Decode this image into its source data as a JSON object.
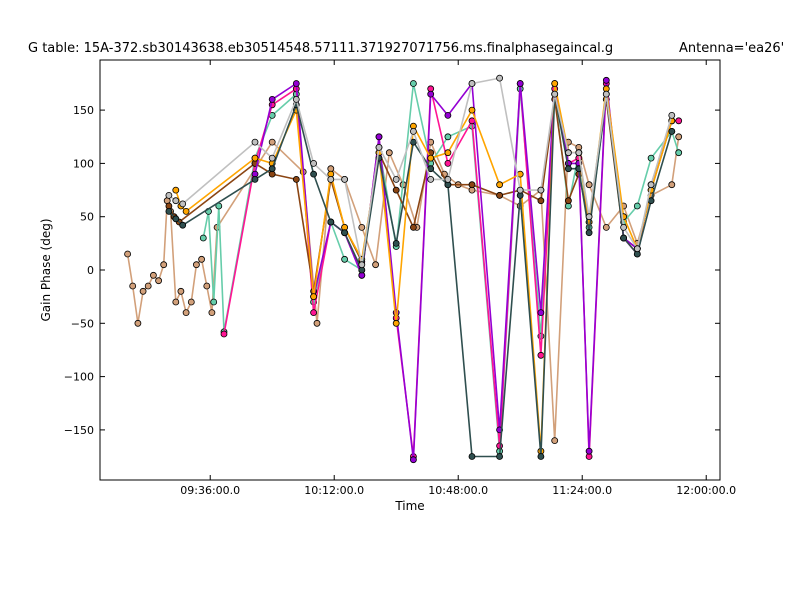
{
  "chart_data": {
    "type": "line",
    "title": "G table: 15A-372.sb30143638.eb30514548.57111.371927071756.ms.finalphasegaincal.g",
    "subtitle": "Antenna='ea26'",
    "xlabel": "Time",
    "ylabel": "Gain Phase (deg)",
    "xlim_minutes": [
      544,
      724
    ],
    "ylim": [
      -197,
      197
    ],
    "grid": false,
    "legend": "none",
    "x_ticks": [
      {
        "minutes": 576,
        "label": "09:36:00.0"
      },
      {
        "minutes": 612,
        "label": "10:12:00.0"
      },
      {
        "minutes": 648,
        "label": "10:48:00.0"
      },
      {
        "minutes": 684,
        "label": "11:24:00.0"
      },
      {
        "minutes": 720,
        "label": "12:00:00.0"
      }
    ],
    "y_ticks": [
      {
        "value": 150,
        "label": "150"
      },
      {
        "value": 100,
        "label": "100"
      },
      {
        "value": 50,
        "label": "50"
      },
      {
        "value": 0,
        "label": "0"
      },
      {
        "value": -50,
        "label": "−50"
      },
      {
        "value": -100,
        "label": "−100"
      },
      {
        "value": -150,
        "label": "−150"
      }
    ],
    "series": [
      {
        "color": "#d2a07a",
        "x": [
          552,
          553.5,
          555,
          556.5,
          558,
          559.5,
          561,
          562.5,
          563.5,
          564.5,
          566,
          567.5,
          569,
          570.5,
          572,
          573.5,
          575,
          576.5,
          578,
          594,
          603,
          607,
          611,
          615,
          620,
          624,
          628,
          632,
          636,
          640,
          644,
          648,
          652,
          660,
          666,
          672,
          676,
          680,
          683,
          686,
          691,
          696,
          700,
          704,
          710,
          712
        ],
        "y": [
          15,
          -15,
          -50,
          -20,
          -15,
          -5,
          -10,
          5,
          65,
          55,
          -30,
          -20,
          -40,
          -30,
          5,
          10,
          -15,
          -40,
          40,
          120,
          92,
          -50,
          95,
          85,
          40,
          5,
          110,
          80,
          40,
          120,
          90,
          80,
          75,
          70,
          60,
          75,
          -160,
          120,
          115,
          80,
          40,
          60,
          25,
          70,
          80,
          125
        ]
      },
      {
        "color": "#66cdaa",
        "x": [
          574,
          575.5,
          577,
          578.5,
          580,
          589,
          594,
          601,
          606,
          611,
          615,
          620,
          625,
          630,
          635,
          640,
          645,
          652,
          660,
          666,
          672,
          676,
          680,
          683,
          686,
          691,
          696,
          700,
          704,
          710,
          712
        ],
        "y": [
          30,
          55,
          -30,
          60,
          -58,
          105,
          145,
          165,
          -30,
          45,
          10,
          0,
          115,
          22,
          175,
          100,
          125,
          135,
          -170,
          170,
          -62,
          165,
          60,
          110,
          40,
          160,
          45,
          60,
          105,
          130,
          110
        ]
      },
      {
        "color": "#ff1493",
        "x": [
          580,
          589,
          594,
          601,
          606,
          611,
          615,
          620,
          625,
          630,
          635,
          640,
          645,
          652,
          660,
          666,
          672,
          676,
          680,
          683,
          686,
          691,
          696,
          700,
          704,
          710,
          712
        ],
        "y": [
          -60,
          100,
          155,
          170,
          -40,
          45,
          35,
          -5,
          125,
          -45,
          -175,
          170,
          100,
          140,
          -165,
          175,
          -80,
          170,
          100,
          105,
          -175,
          175,
          30,
          15,
          80,
          140,
          140
        ]
      },
      {
        "color": "#8b4513",
        "x": [
          564,
          565.5,
          567,
          589,
          594,
          601,
          606,
          611,
          615,
          620,
          625,
          630,
          635,
          640,
          645,
          652,
          660,
          666,
          672,
          676,
          680,
          683,
          686,
          691,
          696,
          700,
          704,
          710
        ],
        "y": [
          60,
          50,
          45,
          100,
          90,
          85,
          -20,
          85,
          40,
          8,
          110,
          75,
          40,
          110,
          80,
          80,
          70,
          75,
          65,
          160,
          65,
          90,
          45,
          160,
          30,
          20,
          75,
          140
        ]
      },
      {
        "color": "#9400d3",
        "x": [
          589,
          594,
          601,
          606,
          611,
          615,
          620,
          625,
          630,
          635,
          640,
          645,
          652,
          660,
          666,
          672,
          676,
          680,
          683,
          686,
          691,
          696,
          700
        ],
        "y": [
          90,
          160,
          175,
          -25,
          45,
          35,
          -5,
          125,
          -40,
          -178,
          165,
          145,
          175,
          -150,
          175,
          -40,
          175,
          100,
          100,
          -170,
          178,
          30,
          20
        ]
      },
      {
        "color": "#ffa500",
        "x": [
          566,
          567.5,
          569,
          589,
          594,
          601,
          606,
          611,
          615,
          620,
          625,
          630,
          635,
          640,
          645,
          652,
          660,
          666,
          672,
          676,
          680,
          683,
          686,
          691,
          696,
          700,
          704,
          710
        ],
        "y": [
          75,
          60,
          55,
          105,
          100,
          150,
          -25,
          90,
          40,
          10,
          110,
          -50,
          135,
          105,
          110,
          150,
          80,
          90,
          -170,
          175,
          110,
          110,
          45,
          170,
          50,
          20,
          75,
          140
        ]
      },
      {
        "color": "#2f4f4f",
        "x": [
          564,
          566,
          568,
          589,
          594,
          601,
          606,
          611,
          615,
          620,
          625,
          630,
          635,
          640,
          645,
          652,
          660,
          666,
          672,
          676,
          680,
          683,
          686,
          691,
          696,
          700,
          704,
          710
        ],
        "y": [
          55,
          48,
          42,
          85,
          95,
          155,
          90,
          45,
          35,
          0,
          105,
          25,
          120,
          95,
          80,
          -175,
          -175,
          70,
          -175,
          165,
          95,
          95,
          35,
          165,
          30,
          15,
          65,
          130
        ]
      },
      {
        "color": "#c0c0c0",
        "x": [
          564,
          566,
          568,
          589,
          594,
          601,
          606,
          611,
          615,
          620,
          625,
          630,
          635,
          640,
          645,
          652,
          660,
          666,
          672,
          676,
          680,
          683,
          686,
          691,
          696,
          700,
          704,
          710
        ],
        "y": [
          70,
          65,
          62,
          120,
          105,
          160,
          100,
          85,
          85,
          5,
          115,
          85,
          130,
          85,
          85,
          175,
          180,
          75,
          75,
          165,
          110,
          110,
          50,
          165,
          40,
          20,
          80,
          145
        ]
      }
    ]
  }
}
